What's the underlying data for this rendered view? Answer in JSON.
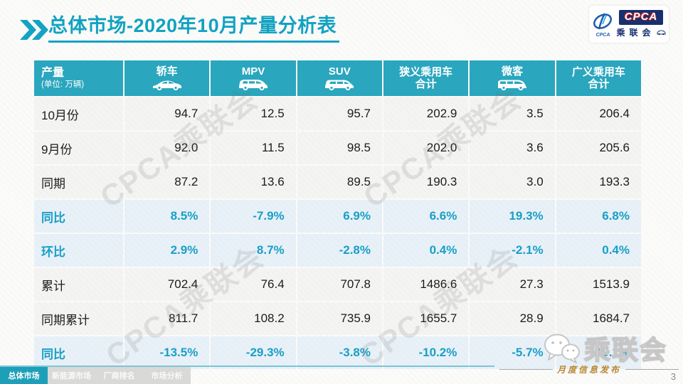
{
  "title": {
    "text": "总体市场-2020年10月产量分析表"
  },
  "logo": {
    "cpca_small": "CPCA",
    "cpca_box": "CPCA",
    "cn_name": "乘联会"
  },
  "table": {
    "header": {
      "col0_title": "产量",
      "col0_sub": "(单位: 万辆)"
    },
    "columns": [
      {
        "label": "轿车",
        "icon": "sedan-icon"
      },
      {
        "label": "MPV",
        "icon": "mpv-icon"
      },
      {
        "label": "SUV",
        "icon": "suv-icon"
      },
      {
        "label": "狭义乘用车",
        "label2": "合计"
      },
      {
        "label": "微客",
        "icon": "minibus-icon"
      },
      {
        "label": "广义乘用车",
        "label2": "合计"
      }
    ],
    "rows": [
      {
        "label": "10月份",
        "type": "normal",
        "values": [
          "94.7",
          "12.5",
          "95.7",
          "202.9",
          "3.5",
          "206.4"
        ]
      },
      {
        "label": "9月份",
        "type": "normal",
        "values": [
          "92.0",
          "11.5",
          "98.5",
          "202.0",
          "3.6",
          "205.6"
        ]
      },
      {
        "label": "同期",
        "type": "normal",
        "values": [
          "87.2",
          "13.6",
          "89.5",
          "190.3",
          "3.0",
          "193.3"
        ]
      },
      {
        "label": "同比",
        "type": "highlight",
        "values": [
          "8.5%",
          "-7.9%",
          "6.9%",
          "6.6%",
          "19.3%",
          "6.8%"
        ]
      },
      {
        "label": "环比",
        "type": "highlight",
        "values": [
          "2.9%",
          "8.7%",
          "-2.8%",
          "0.4%",
          "-2.1%",
          "0.4%"
        ]
      },
      {
        "label": "累计",
        "type": "normal",
        "values": [
          "702.4",
          "76.4",
          "707.8",
          "1486.6",
          "27.3",
          "1513.9"
        ]
      },
      {
        "label": "同期累计",
        "type": "normal",
        "values": [
          "811.7",
          "108.2",
          "735.9",
          "1655.7",
          "28.9",
          "1684.7"
        ]
      },
      {
        "label": "同比",
        "type": "highlight",
        "values": [
          "-13.5%",
          "-29.3%",
          "-3.8%",
          "-10.2%",
          "-5.7%",
          "-10.1%"
        ]
      }
    ]
  },
  "watermark": {
    "text": "CPCA乘联会"
  },
  "footer": {
    "tabs": [
      {
        "label": "总体市场",
        "active": true
      },
      {
        "label": "新能源市场",
        "active": false
      },
      {
        "label": "厂商排名",
        "active": false
      },
      {
        "label": "市场分析",
        "active": false
      }
    ],
    "publication": "月度信息发布",
    "page_number": "3",
    "wechat_name": "乘联会"
  },
  "colors": {
    "accent_teal": "#12a2c1",
    "header_teal": "#2aa6be",
    "highlight_row_bg": "#e8f1f8",
    "highlight_text": "#199fc6",
    "active_tab": "#1e9fb8",
    "publication_gold": "#b8872b",
    "logo_navy": "#17306e"
  }
}
